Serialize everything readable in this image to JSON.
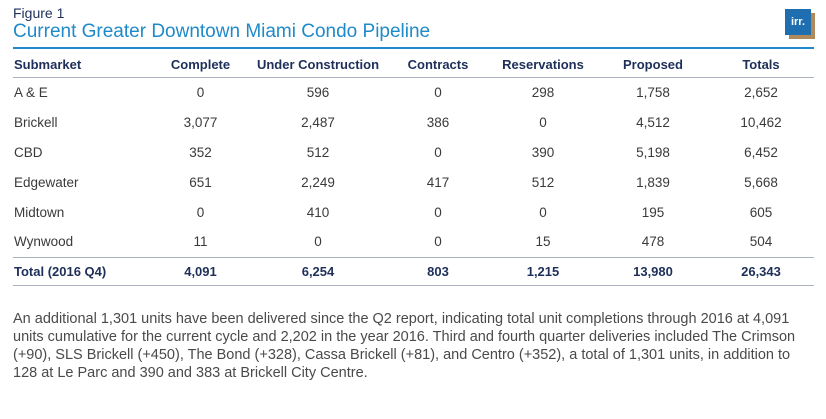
{
  "figure": {
    "label": "Figure 1",
    "title": "Current Greater Downtown Miami Condo Pipeline",
    "logo_text": "irr."
  },
  "table": {
    "headers": [
      "Submarket",
      "Complete",
      "Under Construction",
      "Contracts",
      "Reservations",
      "Proposed",
      "Totals"
    ],
    "rows": [
      [
        "A & E",
        "0",
        "596",
        "0",
        "298",
        "1,758",
        "2,652"
      ],
      [
        "Brickell",
        "3,077",
        "2,487",
        "386",
        "0",
        "4,512",
        "10,462"
      ],
      [
        "CBD",
        "352",
        "512",
        "0",
        "390",
        "5,198",
        "6,452"
      ],
      [
        "Edgewater",
        "651",
        "2,249",
        "417",
        "512",
        "1,839",
        "5,668"
      ],
      [
        "Midtown",
        "0",
        "410",
        "0",
        "0",
        "195",
        "605"
      ],
      [
        "Wynwood",
        "11",
        "0",
        "0",
        "15",
        "478",
        "504"
      ]
    ],
    "total_row": [
      "Total (2016 Q4)",
      "4,091",
      "6,254",
      "803",
      "1,215",
      "13,980",
      "26,343"
    ]
  },
  "note": "An additional 1,301 units have been delivered since the Q2 report, indicating total unit completions through 2016 at 4,091 units cumulative for the current cycle and 2,202 in the year 2016. Third and fourth quarter deliveries included The Crimson (+90), SLS Brickell (+450), The Bond (+328), Cassa Brickell (+81), and Centro (+352), a total of 1,301 units, in addition to 128 at Le Parc and 390 and 383 at Brickell City Centre."
}
